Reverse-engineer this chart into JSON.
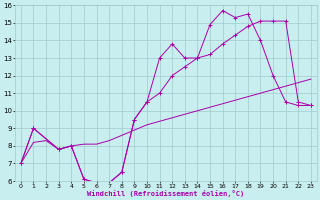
{
  "xlabel": "Windchill (Refroidissement éolien,°C)",
  "background_color": "#c8eef0",
  "grid_color": "#a0cccc",
  "line_color": "#aa00aa",
  "xlim": [
    -0.5,
    23.5
  ],
  "ylim": [
    6,
    16
  ],
  "xticks": [
    0,
    1,
    2,
    3,
    4,
    5,
    6,
    7,
    8,
    9,
    10,
    11,
    12,
    13,
    14,
    15,
    16,
    17,
    18,
    19,
    20,
    21,
    22,
    23
  ],
  "yticks": [
    6,
    7,
    8,
    9,
    10,
    11,
    12,
    13,
    14,
    15,
    16
  ],
  "line1_x": [
    0,
    1,
    3,
    4,
    5,
    6,
    7,
    8,
    9,
    10,
    11,
    12,
    13,
    14,
    15,
    16,
    17,
    18,
    19,
    20,
    21,
    22,
    23
  ],
  "line1_y": [
    7.0,
    9.0,
    7.8,
    8.0,
    6.1,
    5.9,
    5.9,
    6.5,
    9.5,
    10.5,
    13.0,
    13.8,
    13.0,
    13.0,
    14.9,
    15.7,
    15.3,
    15.5,
    14.0,
    12.0,
    10.5,
    10.3,
    10.3
  ],
  "line2_x": [
    0,
    1,
    3,
    4,
    5,
    6,
    7,
    8,
    9,
    10,
    11,
    12,
    13,
    14,
    15,
    16,
    17,
    18,
    19,
    20,
    21,
    22,
    23
  ],
  "line2_y": [
    7.0,
    9.0,
    7.8,
    8.0,
    6.1,
    5.9,
    5.9,
    6.5,
    9.5,
    10.5,
    11.0,
    12.0,
    12.5,
    13.0,
    13.2,
    13.8,
    14.3,
    14.8,
    15.1,
    15.1,
    15.1,
    10.5,
    10.3
  ],
  "line3_x": [
    0,
    1,
    2,
    3,
    4,
    5,
    6,
    7,
    8,
    9,
    10,
    11,
    12,
    13,
    14,
    15,
    16,
    17,
    18,
    19,
    20,
    21,
    22,
    23
  ],
  "line3_y": [
    7.0,
    8.2,
    8.3,
    7.8,
    8.0,
    8.1,
    8.1,
    8.3,
    8.6,
    8.9,
    9.2,
    9.4,
    9.6,
    9.8,
    10.0,
    10.2,
    10.4,
    10.6,
    10.8,
    11.0,
    11.2,
    11.4,
    11.6,
    11.8
  ]
}
